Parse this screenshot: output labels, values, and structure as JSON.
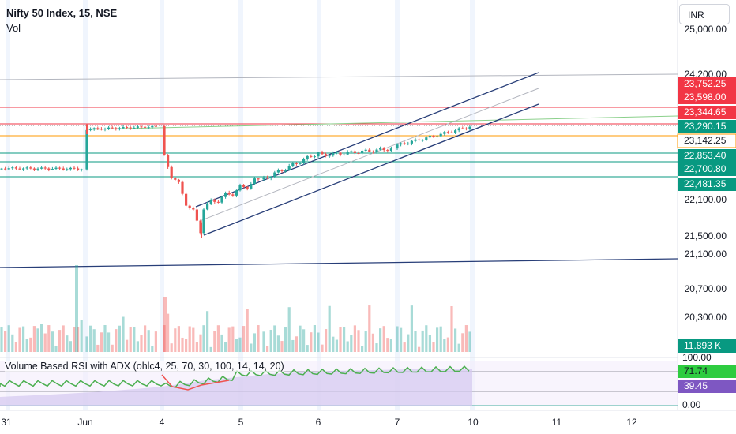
{
  "header": {
    "symbol": "Nifty 50 Index, 15, NSE",
    "volume_label": "Vol",
    "currency": "INR",
    "indicator": "Volume Based RSI with ADX (ohlc4, 25, 70, 30, 100, 14, 14, 20)"
  },
  "colors": {
    "up": "#26a69a",
    "down": "#ef5350",
    "red_level": "#f23645",
    "orange_level": "#ff9800",
    "green_level": "#089981",
    "navy_line": "#283e78",
    "grey_line": "#b2b5be",
    "session_band": "#e3edfc"
  },
  "chart_data": {
    "type": "candlestick",
    "price_axis_ticks": [
      "25,000.00",
      "24,200.00",
      "22,100.00",
      "21,500.00",
      "21,100.00",
      "20,700.00",
      "20,300.00"
    ],
    "time_axis_labels": [
      "31",
      "Jun",
      "4",
      "5",
      "6",
      "7",
      "10",
      "11",
      "12"
    ],
    "price_labels": [
      {
        "text": "23,752.25",
        "kind": "red"
      },
      {
        "text": "23,598.00",
        "kind": "red"
      },
      {
        "text": "23,344.65",
        "kind": "red"
      },
      {
        "text": "23,290.15",
        "kind": "teal"
      },
      {
        "text": "23,142.25",
        "kind": "orange"
      },
      {
        "text": "22,853.40",
        "kind": "green"
      },
      {
        "text": "22,700.80",
        "kind": "green"
      },
      {
        "text": "22,481.35",
        "kind": "green"
      }
    ],
    "volume_label": "11.893 K",
    "rsi": {
      "axis_ticks": [
        "100.00",
        "0.00"
      ],
      "value": "71.74",
      "adx": "39.45"
    },
    "candles_description": "Intraday 15-minute candles from 31 May to 7 June",
    "key_points": [
      {
        "session": "31",
        "close": 22530
      },
      {
        "session": "3 Jun",
        "high": 23338,
        "close": 23270
      },
      {
        "session": "4 Jun",
        "low": 21281,
        "close": 21880
      },
      {
        "session": "5 Jun",
        "close": 22620
      },
      {
        "session": "6 Jun",
        "close": 22820
      },
      {
        "session": "7 Jun",
        "close": 23290
      }
    ]
  }
}
